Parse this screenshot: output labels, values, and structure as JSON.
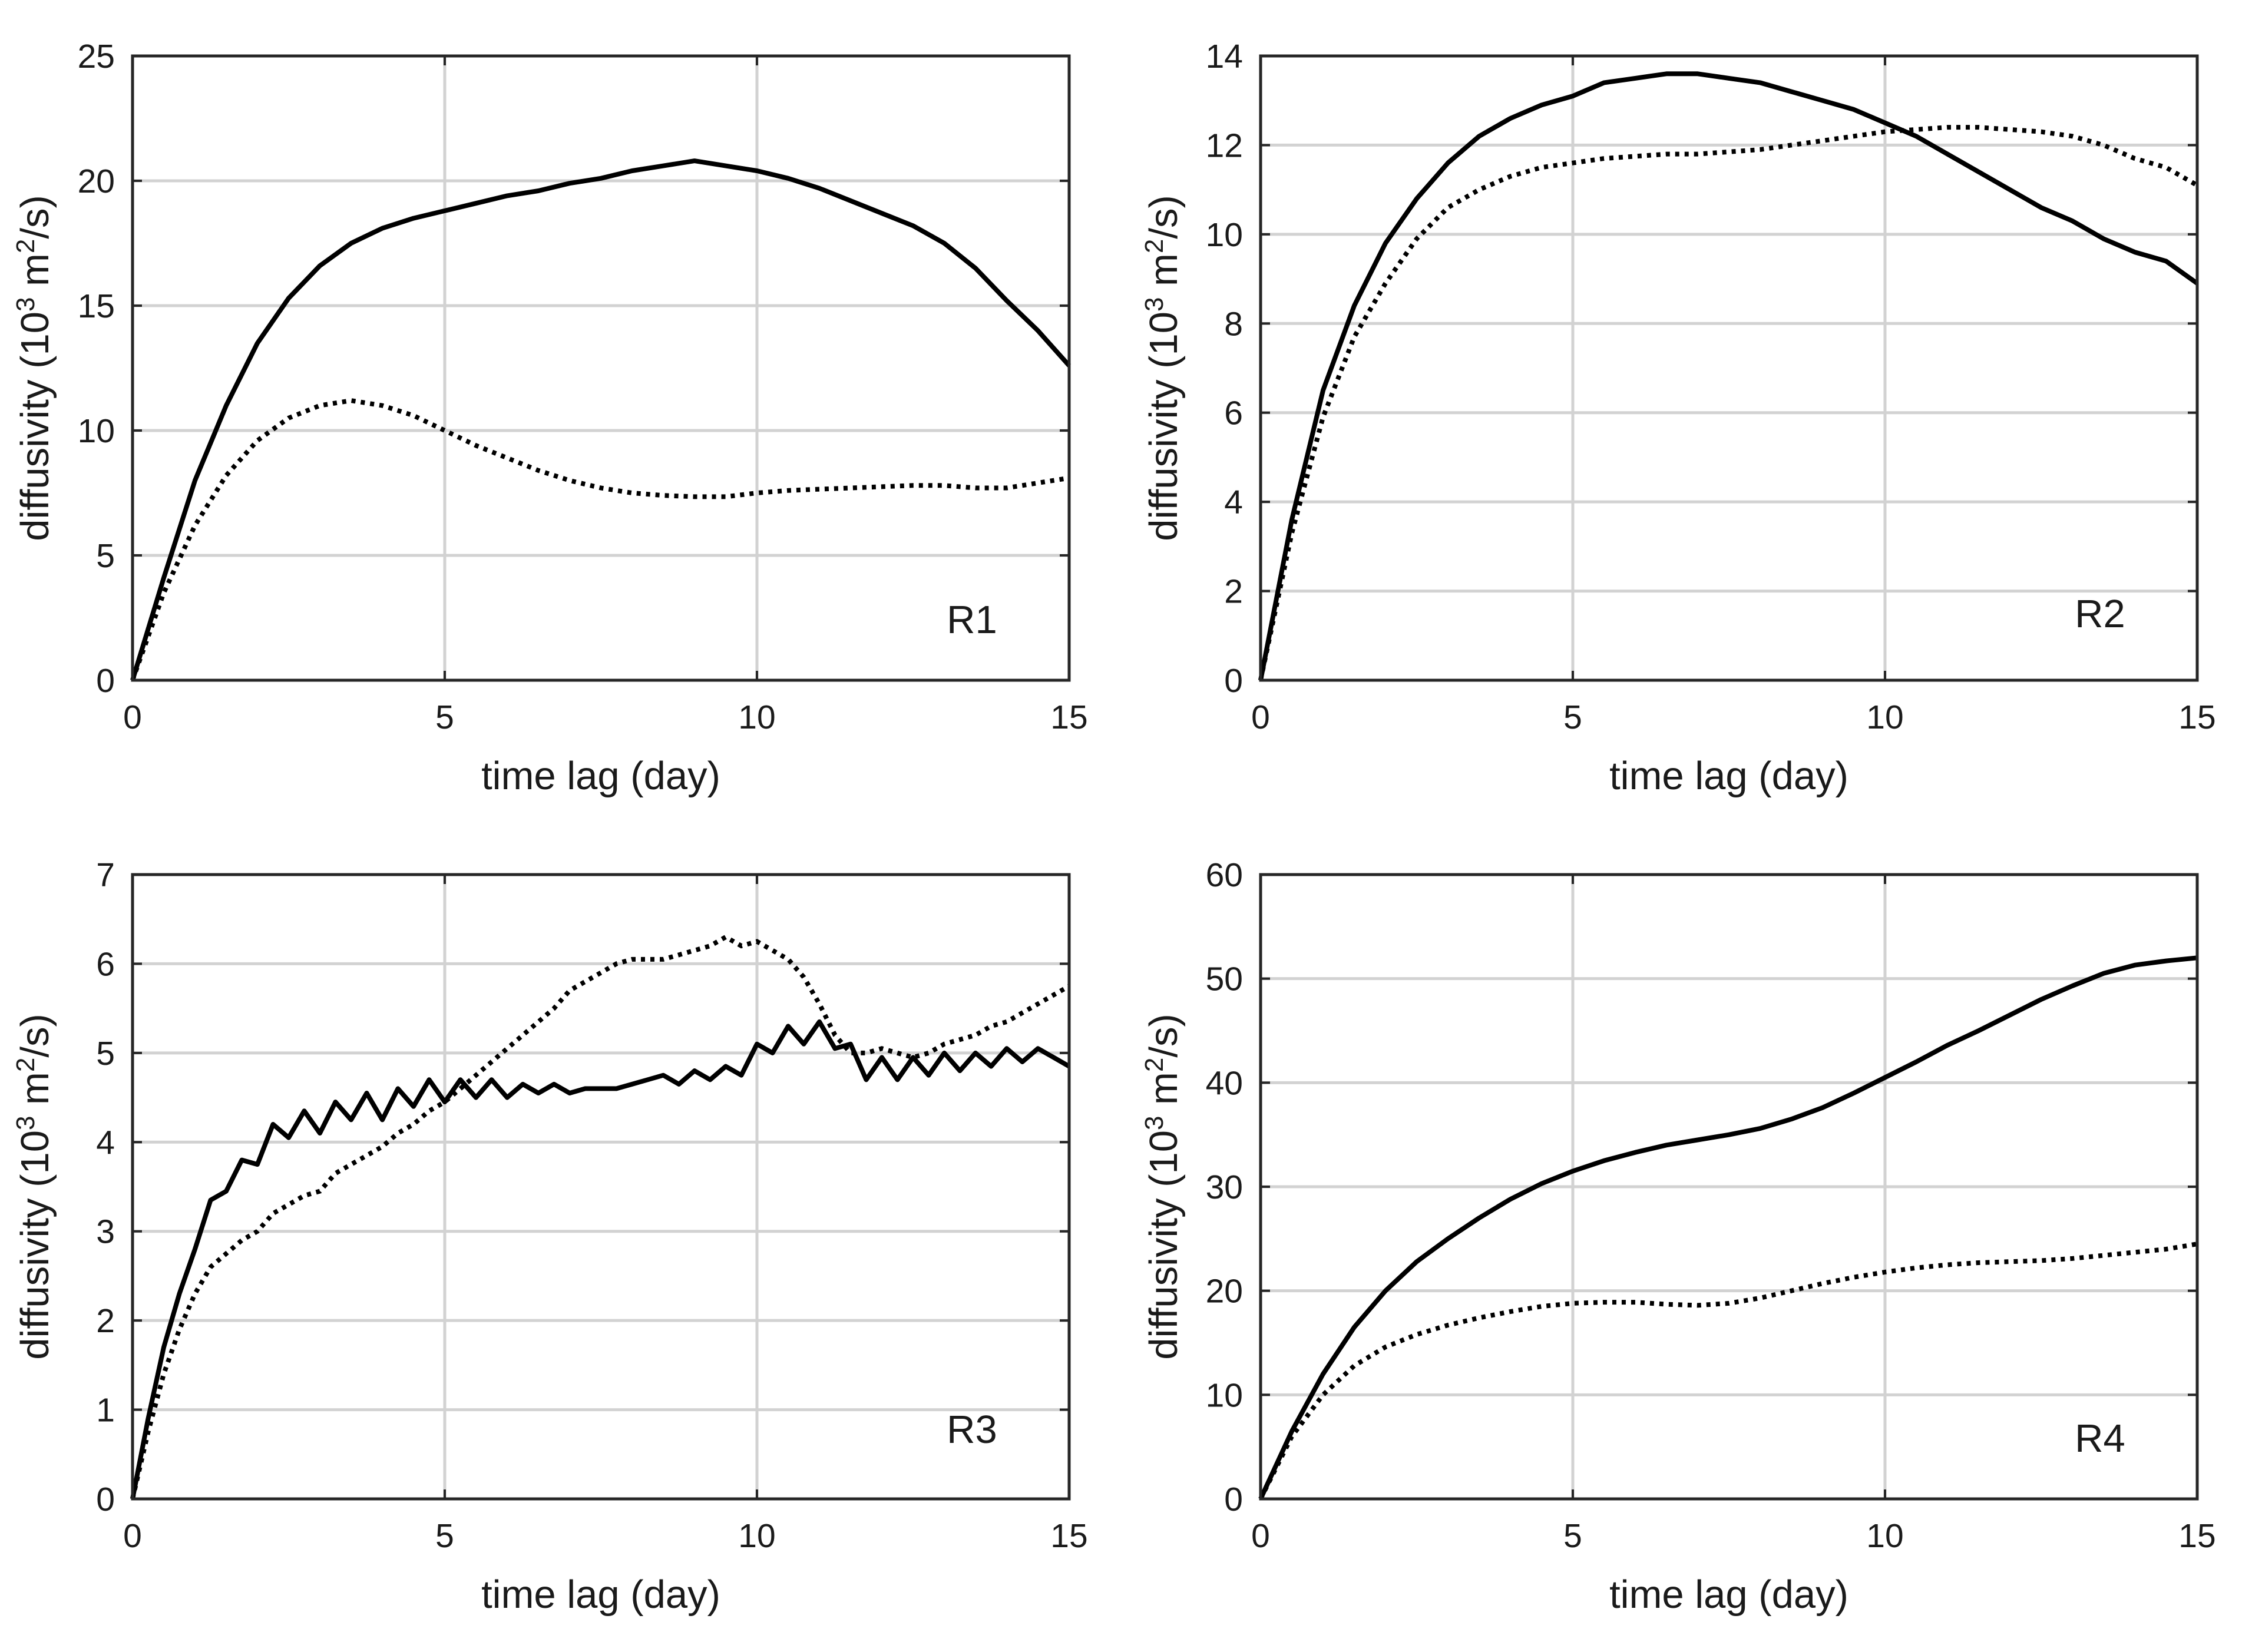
{
  "figure": {
    "background": "#ffffff",
    "line_color": "#000000",
    "grid_color": "#d2d2d2"
  },
  "chart_data": [
    {
      "type": "line",
      "panel": "R1",
      "panel_label": "R1",
      "panel_label_position": "bottom-right",
      "xlabel": "time lag (day)",
      "ylabel": {
        "pre": "diffusivity (10",
        "sup": "3",
        "mid": " m",
        "sup2": "2",
        "post": "/s)"
      },
      "xlim": [
        0,
        15
      ],
      "ylim": [
        0,
        25
      ],
      "xticks": [
        0,
        5,
        10,
        15
      ],
      "yticks": [
        0,
        5,
        10,
        15,
        20,
        25
      ],
      "grid": true,
      "series": [
        {
          "name": "solid",
          "style": "solid",
          "x": [
            0,
            0.5,
            1,
            1.5,
            2,
            2.5,
            3,
            3.5,
            4,
            4.5,
            5,
            5.5,
            6,
            6.5,
            7,
            7.5,
            8,
            8.5,
            9,
            9.5,
            10,
            10.5,
            11,
            11.5,
            12,
            12.5,
            13,
            13.5,
            14,
            14.5,
            15
          ],
          "y": [
            0,
            4.1,
            8.0,
            11.0,
            13.5,
            15.3,
            16.6,
            17.5,
            18.1,
            18.5,
            18.8,
            19.1,
            19.4,
            19.6,
            19.9,
            20.1,
            20.4,
            20.6,
            20.8,
            20.6,
            20.4,
            20.1,
            19.7,
            19.2,
            18.7,
            18.2,
            17.5,
            16.5,
            15.2,
            14.0,
            12.6
          ]
        },
        {
          "name": "dotted",
          "style": "dotted",
          "x": [
            0,
            0.5,
            1,
            1.5,
            2,
            2.5,
            3,
            3.5,
            4,
            4.5,
            5,
            5.5,
            6,
            6.5,
            7,
            7.5,
            8,
            8.5,
            9,
            9.5,
            10,
            10.5,
            11,
            11.5,
            12,
            12.5,
            13,
            13.5,
            14,
            14.5,
            15
          ],
          "y": [
            0,
            3.5,
            6.2,
            8.2,
            9.6,
            10.5,
            11.0,
            11.2,
            11.0,
            10.6,
            10.0,
            9.4,
            8.9,
            8.4,
            8.0,
            7.7,
            7.5,
            7.4,
            7.35,
            7.35,
            7.5,
            7.6,
            7.65,
            7.7,
            7.75,
            7.8,
            7.8,
            7.7,
            7.7,
            7.9,
            8.1
          ]
        }
      ]
    },
    {
      "type": "line",
      "panel": "R2",
      "panel_label": "R2",
      "panel_label_position": "bottom-right",
      "xlabel": "time lag (day)",
      "ylabel": {
        "pre": "diffusivity (10",
        "sup": "3",
        "mid": " m",
        "sup2": "2",
        "post": "/s)"
      },
      "xlim": [
        0,
        15
      ],
      "ylim": [
        0,
        14
      ],
      "xticks": [
        0,
        5,
        10,
        15
      ],
      "yticks": [
        0,
        2,
        4,
        6,
        8,
        10,
        12,
        14
      ],
      "grid": true,
      "series": [
        {
          "name": "solid",
          "style": "solid",
          "x": [
            0,
            0.5,
            1,
            1.5,
            2,
            2.5,
            3,
            3.5,
            4,
            4.5,
            5,
            5.5,
            6,
            6.5,
            7,
            7.5,
            8,
            8.5,
            9,
            9.5,
            10,
            10.5,
            11,
            11.5,
            12,
            12.5,
            13,
            13.5,
            14,
            14.5,
            15
          ],
          "y": [
            0,
            3.6,
            6.5,
            8.4,
            9.8,
            10.8,
            11.6,
            12.2,
            12.6,
            12.9,
            13.1,
            13.4,
            13.5,
            13.6,
            13.6,
            13.5,
            13.4,
            13.2,
            13.0,
            12.8,
            12.5,
            12.2,
            11.8,
            11.4,
            11.0,
            10.6,
            10.3,
            9.9,
            9.6,
            9.4,
            8.9
          ]
        },
        {
          "name": "dotted",
          "style": "dotted",
          "x": [
            0,
            0.5,
            1,
            1.5,
            2,
            2.5,
            3,
            3.5,
            4,
            4.5,
            5,
            5.5,
            6,
            6.5,
            7,
            7.5,
            8,
            8.5,
            9,
            9.5,
            10,
            10.5,
            11,
            11.5,
            12,
            12.5,
            13,
            13.5,
            14,
            14.5,
            15
          ],
          "y": [
            0,
            3.3,
            5.9,
            7.7,
            8.9,
            9.9,
            10.6,
            11.0,
            11.3,
            11.5,
            11.6,
            11.7,
            11.75,
            11.8,
            11.8,
            11.85,
            11.9,
            12.0,
            12.1,
            12.2,
            12.3,
            12.35,
            12.4,
            12.4,
            12.35,
            12.3,
            12.2,
            12.0,
            11.7,
            11.5,
            11.1
          ]
        }
      ]
    },
    {
      "type": "line",
      "panel": "R3",
      "panel_label": "R3",
      "panel_label_position": "bottom-right",
      "xlabel": "time lag (day)",
      "ylabel": {
        "pre": "diffusivity (10",
        "sup": "3",
        "mid": " m",
        "sup2": "2",
        "post": "/s)"
      },
      "xlim": [
        0,
        15
      ],
      "ylim": [
        0,
        7
      ],
      "xticks": [
        0,
        5,
        10,
        15
      ],
      "yticks": [
        0,
        1,
        2,
        3,
        4,
        5,
        6,
        7
      ],
      "grid": true,
      "series": [
        {
          "name": "solid",
          "style": "solid",
          "x": [
            0,
            0.25,
            0.5,
            0.75,
            1,
            1.25,
            1.5,
            1.75,
            2,
            2.25,
            2.5,
            2.75,
            3,
            3.25,
            3.5,
            3.75,
            4,
            4.25,
            4.5,
            4.75,
            5,
            5.25,
            5.5,
            5.75,
            6,
            6.25,
            6.5,
            6.75,
            7,
            7.25,
            7.5,
            7.75,
            8,
            8.25,
            8.5,
            8.75,
            9,
            9.25,
            9.5,
            9.75,
            10,
            10.25,
            10.5,
            10.75,
            11,
            11.25,
            11.5,
            11.75,
            12,
            12.25,
            12.5,
            12.75,
            13,
            13.25,
            13.5,
            13.75,
            14,
            14.25,
            14.5,
            14.75,
            15
          ],
          "y": [
            0,
            0.9,
            1.7,
            2.3,
            2.8,
            3.35,
            3.45,
            3.8,
            3.75,
            4.2,
            4.05,
            4.35,
            4.1,
            4.45,
            4.25,
            4.55,
            4.25,
            4.6,
            4.4,
            4.7,
            4.45,
            4.7,
            4.5,
            4.7,
            4.5,
            4.65,
            4.55,
            4.65,
            4.55,
            4.6,
            4.6,
            4.6,
            4.65,
            4.7,
            4.75,
            4.65,
            4.8,
            4.7,
            4.85,
            4.75,
            5.1,
            5.0,
            5.3,
            5.1,
            5.35,
            5.05,
            5.1,
            4.7,
            4.95,
            4.7,
            4.95,
            4.75,
            5.0,
            4.8,
            5.0,
            4.85,
            5.05,
            4.9,
            5.05,
            4.95,
            4.85
          ]
        },
        {
          "name": "dotted",
          "style": "dotted",
          "x": [
            0,
            0.25,
            0.5,
            0.75,
            1,
            1.25,
            1.5,
            1.75,
            2,
            2.25,
            2.5,
            2.75,
            3,
            3.25,
            3.5,
            3.75,
            4,
            4.25,
            4.5,
            4.75,
            5,
            5.25,
            5.5,
            5.75,
            6,
            6.25,
            6.5,
            6.75,
            7,
            7.25,
            7.5,
            7.75,
            8,
            8.25,
            8.5,
            8.75,
            9,
            9.25,
            9.5,
            9.75,
            10,
            10.25,
            10.5,
            10.75,
            11,
            11.25,
            11.5,
            11.75,
            12,
            12.25,
            12.5,
            12.75,
            13,
            13.25,
            13.5,
            13.75,
            14,
            14.25,
            14.5,
            14.75,
            15
          ],
          "y": [
            0,
            0.75,
            1.4,
            1.9,
            2.3,
            2.6,
            2.75,
            2.9,
            3.0,
            3.2,
            3.3,
            3.4,
            3.45,
            3.65,
            3.75,
            3.85,
            3.95,
            4.1,
            4.2,
            4.35,
            4.45,
            4.6,
            4.75,
            4.9,
            5.05,
            5.2,
            5.35,
            5.5,
            5.7,
            5.8,
            5.9,
            6.0,
            6.05,
            6.05,
            6.05,
            6.1,
            6.15,
            6.2,
            6.3,
            6.2,
            6.25,
            6.15,
            6.05,
            5.85,
            5.55,
            5.2,
            5.0,
            5.0,
            5.05,
            5.0,
            4.95,
            5.0,
            5.1,
            5.15,
            5.2,
            5.3,
            5.35,
            5.45,
            5.55,
            5.65,
            5.75
          ]
        }
      ]
    },
    {
      "type": "line",
      "panel": "R4",
      "panel_label": "R4",
      "panel_label_position": "bottom-right",
      "xlabel": "time lag (day)",
      "ylabel": {
        "pre": "diffusivity (10",
        "sup": "3",
        "mid": " m",
        "sup2": "2",
        "post": "/s)"
      },
      "xlim": [
        0,
        15
      ],
      "ylim": [
        0,
        60
      ],
      "xticks": [
        0,
        5,
        10,
        15
      ],
      "yticks": [
        0,
        10,
        20,
        30,
        40,
        50,
        60
      ],
      "grid": true,
      "series": [
        {
          "name": "solid",
          "style": "solid",
          "x": [
            0,
            0.5,
            1,
            1.5,
            2,
            2.5,
            3,
            3.5,
            4,
            4.5,
            5,
            5.5,
            6,
            6.5,
            7,
            7.5,
            8,
            8.5,
            9,
            9.5,
            10,
            10.5,
            11,
            11.5,
            12,
            12.5,
            13,
            13.5,
            14,
            14.5,
            15
          ],
          "y": [
            0,
            6.5,
            12.0,
            16.5,
            20.0,
            22.8,
            25.0,
            27.0,
            28.8,
            30.3,
            31.5,
            32.5,
            33.3,
            34.0,
            34.5,
            35.0,
            35.6,
            36.5,
            37.6,
            39.0,
            40.5,
            42.0,
            43.6,
            45.0,
            46.5,
            48.0,
            49.3,
            50.5,
            51.3,
            51.7,
            52.0
          ]
        },
        {
          "name": "dotted",
          "style": "dotted",
          "x": [
            0,
            0.5,
            1,
            1.5,
            2,
            2.5,
            3,
            3.5,
            4,
            4.5,
            5,
            5.5,
            6,
            6.5,
            7,
            7.5,
            8,
            8.5,
            9,
            9.5,
            10,
            10.5,
            11,
            11.5,
            12,
            12.5,
            13,
            13.5,
            14,
            14.5,
            15
          ],
          "y": [
            0,
            6.0,
            10.0,
            12.8,
            14.6,
            15.8,
            16.7,
            17.4,
            18.0,
            18.5,
            18.8,
            18.9,
            18.9,
            18.7,
            18.6,
            18.8,
            19.3,
            20.0,
            20.7,
            21.3,
            21.8,
            22.2,
            22.5,
            22.7,
            22.8,
            22.9,
            23.1,
            23.4,
            23.7,
            24.0,
            24.5
          ]
        }
      ]
    }
  ]
}
